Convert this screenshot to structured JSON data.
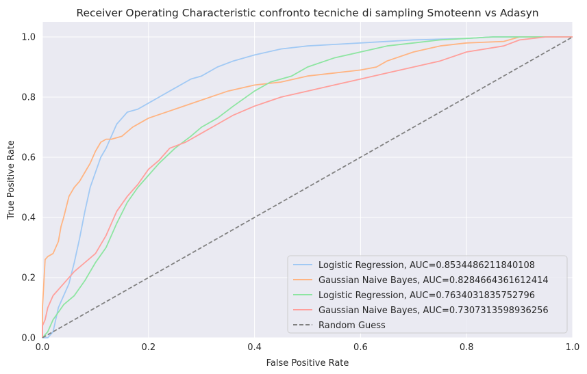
{
  "chart_data": {
    "type": "line",
    "title": "Receiver Operating Characteristic confronto tecniche di sampling Smoteenn vs Adasyn",
    "xlabel": "False Positive Rate",
    "ylabel": "True Positive Rate",
    "xlim": [
      0,
      1
    ],
    "ylim": [
      0,
      1.05
    ],
    "xticks": [
      0.0,
      0.2,
      0.4,
      0.6,
      0.8,
      1.0
    ],
    "yticks": [
      0.0,
      0.2,
      0.4,
      0.6,
      0.8,
      1.0
    ],
    "xtick_labels": [
      "0.0",
      "0.2",
      "0.4",
      "0.6",
      "0.8",
      "1.0"
    ],
    "ytick_labels": [
      "0.0",
      "0.2",
      "0.4",
      "0.6",
      "0.8",
      "1.0"
    ],
    "grid": true,
    "background": "#eaeaf2",
    "legend_position": "lower-right",
    "series": [
      {
        "name": "Logistic Regression, AUC=0.8534486211840108",
        "color": "#a1c9f4",
        "dash": false,
        "x": [
          0.0,
          0.01,
          0.02,
          0.03,
          0.04,
          0.05,
          0.06,
          0.07,
          0.08,
          0.09,
          0.1,
          0.11,
          0.12,
          0.13,
          0.14,
          0.15,
          0.16,
          0.18,
          0.2,
          0.22,
          0.25,
          0.28,
          0.3,
          0.33,
          0.36,
          0.4,
          0.45,
          0.5,
          0.55,
          0.6,
          0.7,
          0.8,
          0.85,
          0.9,
          1.0
        ],
        "y": [
          0.0,
          0.0,
          0.02,
          0.1,
          0.14,
          0.18,
          0.25,
          0.33,
          0.42,
          0.5,
          0.55,
          0.6,
          0.63,
          0.67,
          0.71,
          0.73,
          0.75,
          0.76,
          0.78,
          0.8,
          0.83,
          0.86,
          0.87,
          0.9,
          0.92,
          0.94,
          0.96,
          0.97,
          0.975,
          0.98,
          0.99,
          0.995,
          1.0,
          1.0,
          1.0
        ]
      },
      {
        "name": "Gaussian Naive Bayes, AUC=0.8284664361612414",
        "color": "#ffb482",
        "dash": false,
        "x": [
          0.0,
          0.0,
          0.005,
          0.01,
          0.02,
          0.03,
          0.035,
          0.04,
          0.05,
          0.06,
          0.07,
          0.08,
          0.09,
          0.1,
          0.11,
          0.12,
          0.13,
          0.15,
          0.17,
          0.19,
          0.2,
          0.25,
          0.3,
          0.35,
          0.4,
          0.45,
          0.5,
          0.55,
          0.6,
          0.63,
          0.65,
          0.7,
          0.75,
          0.8,
          0.87,
          0.9,
          1.0
        ],
        "y": [
          0.0,
          0.1,
          0.26,
          0.27,
          0.28,
          0.32,
          0.37,
          0.4,
          0.47,
          0.5,
          0.52,
          0.55,
          0.58,
          0.62,
          0.65,
          0.66,
          0.66,
          0.67,
          0.7,
          0.72,
          0.73,
          0.76,
          0.79,
          0.82,
          0.84,
          0.85,
          0.87,
          0.88,
          0.89,
          0.9,
          0.92,
          0.95,
          0.97,
          0.98,
          0.985,
          1.0,
          1.0
        ]
      },
      {
        "name": "Logistic Regression, AUC=0.7634031835752796",
        "color": "#8de5a1",
        "dash": false,
        "x": [
          0.0,
          0.01,
          0.02,
          0.04,
          0.06,
          0.08,
          0.1,
          0.12,
          0.14,
          0.16,
          0.18,
          0.2,
          0.22,
          0.25,
          0.28,
          0.3,
          0.33,
          0.36,
          0.4,
          0.43,
          0.47,
          0.5,
          0.55,
          0.6,
          0.65,
          0.7,
          0.75,
          0.8,
          0.85,
          0.9,
          1.0
        ],
        "y": [
          0.0,
          0.02,
          0.06,
          0.11,
          0.14,
          0.19,
          0.25,
          0.3,
          0.38,
          0.45,
          0.5,
          0.54,
          0.58,
          0.63,
          0.67,
          0.7,
          0.73,
          0.77,
          0.82,
          0.85,
          0.87,
          0.9,
          0.93,
          0.95,
          0.97,
          0.98,
          0.99,
          0.995,
          1.0,
          1.0,
          1.0
        ]
      },
      {
        "name": "Gaussian Naive Bayes, AUC=0.7307313598936256",
        "color": "#ff9f9b",
        "dash": false,
        "x": [
          0.0,
          0.0,
          0.005,
          0.01,
          0.02,
          0.04,
          0.06,
          0.08,
          0.1,
          0.12,
          0.14,
          0.16,
          0.18,
          0.2,
          0.22,
          0.24,
          0.27,
          0.3,
          0.33,
          0.36,
          0.4,
          0.45,
          0.5,
          0.55,
          0.6,
          0.65,
          0.7,
          0.75,
          0.8,
          0.87,
          0.9,
          0.95,
          1.0
        ],
        "y": [
          0.0,
          0.04,
          0.06,
          0.1,
          0.14,
          0.18,
          0.22,
          0.25,
          0.28,
          0.34,
          0.42,
          0.47,
          0.51,
          0.56,
          0.59,
          0.63,
          0.65,
          0.68,
          0.71,
          0.74,
          0.77,
          0.8,
          0.82,
          0.84,
          0.86,
          0.88,
          0.9,
          0.92,
          0.95,
          0.97,
          0.99,
          1.0,
          1.0
        ]
      },
      {
        "name": "Random Guess",
        "color": "#808080",
        "dash": true,
        "x": [
          0.0,
          1.0
        ],
        "y": [
          0.0,
          1.0
        ]
      }
    ]
  }
}
